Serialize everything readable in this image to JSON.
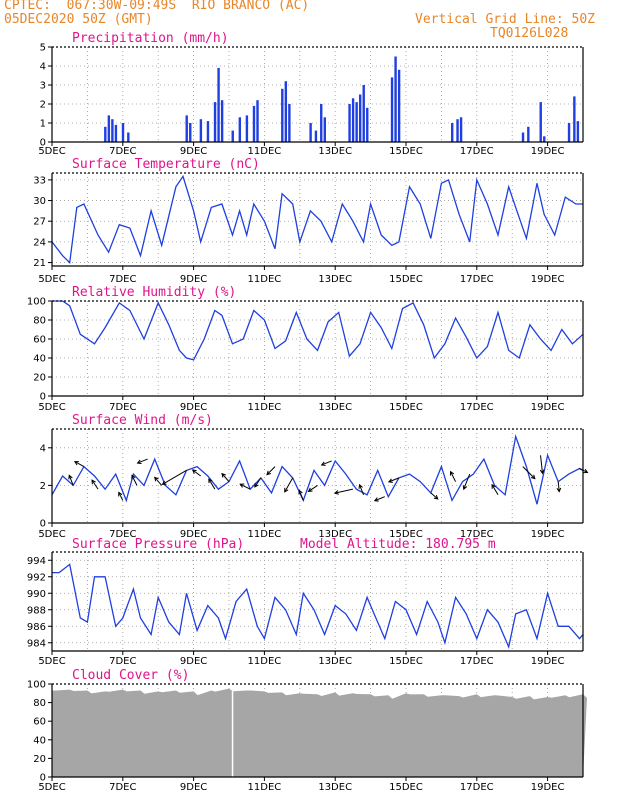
{
  "header": {
    "line1_left": "CPTEC:  067:30W-09:49S  RIO BRANCO (AC)",
    "line2_left": "05DEC2020 50Z (GMT)",
    "line1_right": "Vertical Grid Line: 50Z",
    "line2_right": "TQ0126L028"
  },
  "colors": {
    "accent": "#e0148c",
    "header": "#e8862a",
    "series": "#1f3fe0",
    "cloud": "#a6a6a6"
  },
  "chart_data": [
    {
      "type": "bar",
      "title": "Precipitation (mm/h)",
      "ylim": [
        0,
        5
      ],
      "yticks": [
        "0",
        "1",
        "2",
        "3",
        "4",
        "5"
      ],
      "xticks": [
        "5DEC",
        "7DEC",
        "9DEC",
        "11DEC",
        "13DEC",
        "15DEC",
        "17DEC",
        "19DEC"
      ],
      "x_range_days": [
        5,
        20
      ],
      "bars": [
        {
          "x": 6.5,
          "y": 0.8
        },
        {
          "x": 6.6,
          "y": 1.4
        },
        {
          "x": 6.7,
          "y": 1.2
        },
        {
          "x": 6.8,
          "y": 0.9
        },
        {
          "x": 7.0,
          "y": 1.0
        },
        {
          "x": 7.15,
          "y": 0.5
        },
        {
          "x": 8.8,
          "y": 1.4
        },
        {
          "x": 8.9,
          "y": 1.0
        },
        {
          "x": 9.2,
          "y": 1.2
        },
        {
          "x": 9.4,
          "y": 1.1
        },
        {
          "x": 9.6,
          "y": 2.1
        },
        {
          "x": 9.7,
          "y": 3.9
        },
        {
          "x": 9.8,
          "y": 2.2
        },
        {
          "x": 10.1,
          "y": 0.6
        },
        {
          "x": 10.3,
          "y": 1.3
        },
        {
          "x": 10.5,
          "y": 1.4
        },
        {
          "x": 10.7,
          "y": 1.9
        },
        {
          "x": 10.8,
          "y": 2.2
        },
        {
          "x": 11.5,
          "y": 2.8
        },
        {
          "x": 11.6,
          "y": 3.2
        },
        {
          "x": 11.7,
          "y": 2.0
        },
        {
          "x": 12.3,
          "y": 1.0
        },
        {
          "x": 12.45,
          "y": 0.6
        },
        {
          "x": 12.6,
          "y": 2.0
        },
        {
          "x": 12.7,
          "y": 1.3
        },
        {
          "x": 13.4,
          "y": 2.0
        },
        {
          "x": 13.5,
          "y": 2.3
        },
        {
          "x": 13.6,
          "y": 2.1
        },
        {
          "x": 13.7,
          "y": 2.5
        },
        {
          "x": 13.8,
          "y": 3.0
        },
        {
          "x": 13.9,
          "y": 1.8
        },
        {
          "x": 14.6,
          "y": 3.4
        },
        {
          "x": 14.7,
          "y": 4.5
        },
        {
          "x": 14.8,
          "y": 3.8
        },
        {
          "x": 16.3,
          "y": 1.0
        },
        {
          "x": 16.45,
          "y": 1.2
        },
        {
          "x": 16.55,
          "y": 1.3
        },
        {
          "x": 18.3,
          "y": 0.5
        },
        {
          "x": 18.45,
          "y": 0.8
        },
        {
          "x": 18.8,
          "y": 2.1
        },
        {
          "x": 18.9,
          "y": 0.3
        },
        {
          "x": 19.6,
          "y": 1.0
        },
        {
          "x": 19.75,
          "y": 2.4
        },
        {
          "x": 19.85,
          "y": 1.1
        }
      ]
    },
    {
      "type": "line",
      "title": "Surface Temperature (nC)",
      "ylim": [
        20.5,
        34
      ],
      "yticks": [
        "21",
        "24",
        "27",
        "30",
        "33"
      ],
      "ytick_values": [
        21,
        24,
        27,
        30,
        33
      ],
      "xticks": [
        "5DEC",
        "7DEC",
        "9DEC",
        "11DEC",
        "13DEC",
        "15DEC",
        "17DEC",
        "19DEC"
      ],
      "x_range_days": [
        5,
        20
      ],
      "x": [
        5.0,
        5.3,
        5.5,
        5.7,
        5.9,
        6.3,
        6.6,
        6.9,
        7.2,
        7.5,
        7.8,
        8.1,
        8.5,
        8.7,
        9.0,
        9.2,
        9.5,
        9.8,
        10.1,
        10.3,
        10.5,
        10.7,
        11.0,
        11.3,
        11.5,
        11.8,
        12.0,
        12.3,
        12.6,
        12.9,
        13.2,
        13.5,
        13.8,
        14.0,
        14.3,
        14.6,
        14.8,
        15.1,
        15.4,
        15.7,
        16.0,
        16.2,
        16.5,
        16.8,
        17.0,
        17.3,
        17.6,
        17.9,
        18.1,
        18.4,
        18.7,
        18.9,
        19.2,
        19.5,
        19.8,
        20.0
      ],
      "y": [
        24.0,
        22.0,
        21.0,
        29.0,
        29.5,
        25.0,
        22.5,
        26.5,
        26.0,
        22.0,
        28.5,
        23.5,
        32.0,
        33.5,
        28.5,
        24.0,
        29.0,
        29.5,
        25.0,
        28.5,
        25.0,
        29.5,
        27.0,
        23.0,
        31.0,
        29.5,
        24.0,
        28.5,
        27.0,
        24.0,
        29.5,
        27.0,
        24.0,
        29.5,
        25.0,
        23.5,
        24.0,
        32.0,
        29.5,
        24.5,
        32.5,
        33.0,
        28.0,
        24.0,
        33.0,
        29.5,
        25.0,
        32.0,
        29.0,
        24.5,
        32.5,
        28.0,
        25.0,
        30.5,
        29.5,
        29.5
      ]
    },
    {
      "type": "line",
      "title": "Relative Humidity (%)",
      "ylim": [
        0,
        100
      ],
      "yticks": [
        "0",
        "20",
        "40",
        "60",
        "80",
        "100"
      ],
      "ytick_values": [
        0,
        20,
        40,
        60,
        80,
        100
      ],
      "xticks": [
        "5DEC",
        "7DEC",
        "9DEC",
        "11DEC",
        "13DEC",
        "15DEC",
        "17DEC",
        "19DEC"
      ],
      "x_range_days": [
        5,
        20
      ],
      "x": [
        5.0,
        5.3,
        5.5,
        5.8,
        6.2,
        6.5,
        6.9,
        7.2,
        7.6,
        8.0,
        8.3,
        8.6,
        8.8,
        9.0,
        9.3,
        9.6,
        9.8,
        10.1,
        10.4,
        10.7,
        11.0,
        11.3,
        11.6,
        11.9,
        12.2,
        12.5,
        12.8,
        13.1,
        13.4,
        13.7,
        14.0,
        14.3,
        14.6,
        14.9,
        15.2,
        15.5,
        15.8,
        16.1,
        16.4,
        16.7,
        17.0,
        17.3,
        17.6,
        17.9,
        18.2,
        18.5,
        18.8,
        19.1,
        19.4,
        19.7,
        20.0
      ],
      "y": [
        100,
        100,
        95,
        65,
        55,
        72,
        98,
        90,
        60,
        98,
        75,
        48,
        40,
        38,
        60,
        90,
        85,
        55,
        60,
        90,
        80,
        50,
        58,
        88,
        60,
        48,
        78,
        88,
        42,
        55,
        88,
        72,
        50,
        92,
        98,
        75,
        40,
        55,
        82,
        62,
        40,
        52,
        88,
        48,
        40,
        75,
        60,
        48,
        70,
        55,
        65
      ]
    },
    {
      "type": "line",
      "title": "Surface Wind (m/s)",
      "ylim": [
        0,
        5
      ],
      "yticks": [
        "0",
        "2",
        "4"
      ],
      "ytick_values": [
        0,
        2,
        4
      ],
      "xticks": [
        "5DEC",
        "7DEC",
        "9DEC",
        "11DEC",
        "13DEC",
        "15DEC",
        "17DEC",
        "19DEC"
      ],
      "x_range_days": [
        5,
        20
      ],
      "x": [
        5.0,
        5.3,
        5.6,
        5.9,
        6.2,
        6.5,
        6.8,
        7.1,
        7.3,
        7.6,
        7.9,
        8.2,
        8.5,
        8.8,
        9.1,
        9.4,
        9.7,
        10.0,
        10.3,
        10.6,
        10.9,
        11.2,
        11.5,
        11.8,
        12.1,
        12.4,
        12.7,
        13.0,
        13.3,
        13.6,
        13.9,
        14.2,
        14.5,
        14.8,
        15.1,
        15.4,
        15.7,
        16.0,
        16.3,
        16.6,
        16.9,
        17.2,
        17.5,
        17.8,
        18.1,
        18.4,
        18.7,
        19.0,
        19.3,
        19.6,
        19.9,
        20.0
      ],
      "y": [
        1.5,
        2.5,
        2.0,
        3.0,
        2.5,
        1.8,
        2.6,
        1.2,
        2.6,
        2.0,
        3.4,
        2.0,
        1.5,
        2.8,
        3.0,
        2.5,
        1.8,
        2.2,
        3.3,
        1.8,
        2.4,
        1.6,
        3.0,
        2.4,
        1.2,
        2.8,
        2.0,
        3.3,
        2.6,
        1.8,
        1.5,
        2.8,
        1.4,
        2.4,
        2.6,
        2.2,
        1.6,
        3.0,
        1.2,
        2.2,
        2.6,
        3.4,
        2.0,
        1.5,
        4.6,
        3.0,
        1.0,
        3.6,
        2.2,
        2.6,
        2.9,
        2.8
      ],
      "arrows": [
        {
          "x": 5.6,
          "dx": -4,
          "dy": -10
        },
        {
          "x": 5.9,
          "dx": -9,
          "dy": -5
        },
        {
          "x": 6.3,
          "dx": -6,
          "dy": -9
        },
        {
          "x": 7.0,
          "dx": -4,
          "dy": -8
        },
        {
          "x": 7.4,
          "dx": -5,
          "dy": -10
        },
        {
          "x": 7.7,
          "dx": -10,
          "dy": 4
        },
        {
          "x": 8.1,
          "dx": -7,
          "dy": -8
        },
        {
          "x": 8.8,
          "dx": -24,
          "dy": 14
        },
        {
          "x": 9.2,
          "dx": -8,
          "dy": -6
        },
        {
          "x": 9.6,
          "dx": -6,
          "dy": -10
        },
        {
          "x": 10.0,
          "dx": -7,
          "dy": -8
        },
        {
          "x": 10.6,
          "dx": -10,
          "dy": -5
        },
        {
          "x": 10.9,
          "dx": -6,
          "dy": 9
        },
        {
          "x": 11.3,
          "dx": -8,
          "dy": 8
        },
        {
          "x": 11.8,
          "dx": -8,
          "dy": 14
        },
        {
          "x": 12.1,
          "dx": -4,
          "dy": -10
        },
        {
          "x": 12.5,
          "dx": -9,
          "dy": 6
        },
        {
          "x": 12.9,
          "dx": -10,
          "dy": 4
        },
        {
          "x": 13.5,
          "dx": -18,
          "dy": 4
        },
        {
          "x": 13.8,
          "dx": -4,
          "dy": -10
        },
        {
          "x": 14.4,
          "dx": -10,
          "dy": 4
        },
        {
          "x": 14.8,
          "dx": -10,
          "dy": 4
        },
        {
          "x": 15.7,
          "dx": 7,
          "dy": 6
        },
        {
          "x": 16.4,
          "dx": -5,
          "dy": -10
        },
        {
          "x": 16.8,
          "dx": -6,
          "dy": 15
        },
        {
          "x": 17.6,
          "dx": -6,
          "dy": -10
        },
        {
          "x": 18.3,
          "dx": 12,
          "dy": 12
        },
        {
          "x": 18.8,
          "dx": 2,
          "dy": 18
        },
        {
          "x": 19.3,
          "dx": 1,
          "dy": 10
        },
        {
          "x": 19.9,
          "dx": 8,
          "dy": 4
        }
      ]
    },
    {
      "type": "line",
      "title": "Surface Pressure (hPa)",
      "subtitle": "Model Altitude: 180.795 m",
      "ylim": [
        983,
        995
      ],
      "yticks": [
        "984",
        "986",
        "988",
        "990",
        "992",
        "994"
      ],
      "ytick_values": [
        984,
        986,
        988,
        990,
        992,
        994
      ],
      "xticks": [
        "5DEC",
        "7DEC",
        "9DEC",
        "11DEC",
        "13DEC",
        "15DEC",
        "17DEC",
        "19DEC"
      ],
      "x_range_days": [
        5,
        20
      ],
      "x": [
        5.0,
        5.2,
        5.5,
        5.8,
        6.0,
        6.2,
        6.5,
        6.8,
        7.0,
        7.3,
        7.5,
        7.8,
        8.0,
        8.3,
        8.6,
        8.8,
        9.1,
        9.4,
        9.7,
        9.9,
        10.2,
        10.5,
        10.8,
        11.0,
        11.3,
        11.6,
        11.9,
        12.1,
        12.4,
        12.7,
        13.0,
        13.3,
        13.6,
        13.9,
        14.1,
        14.4,
        14.7,
        15.0,
        15.3,
        15.6,
        15.9,
        16.1,
        16.4,
        16.7,
        17.0,
        17.3,
        17.6,
        17.9,
        18.1,
        18.4,
        18.7,
        19.0,
        19.3,
        19.6,
        19.9,
        20.0
      ],
      "y": [
        992.5,
        992.5,
        993.5,
        987.0,
        986.5,
        992.0,
        992.0,
        986.0,
        987.0,
        990.5,
        987.0,
        985.0,
        989.5,
        986.5,
        985.0,
        990.0,
        985.5,
        988.5,
        987.0,
        984.5,
        989.0,
        990.5,
        986.0,
        984.5,
        989.5,
        988.0,
        985.0,
        990.0,
        988.0,
        985.0,
        988.5,
        987.5,
        985.5,
        989.5,
        987.5,
        984.5,
        989.0,
        988.0,
        985.0,
        989.0,
        986.5,
        984.0,
        989.5,
        987.5,
        984.5,
        988.0,
        986.5,
        983.5,
        987.5,
        988.0,
        984.5,
        990.0,
        986.0,
        986.0,
        984.5,
        985.0
      ]
    },
    {
      "type": "area",
      "title": "Cloud Cover (%)",
      "ylim": [
        0,
        100
      ],
      "yticks": [
        "0",
        "20",
        "40",
        "60",
        "80",
        "100"
      ],
      "ytick_values": [
        0,
        20,
        40,
        60,
        80,
        100
      ],
      "xticks": [
        "5DEC",
        "7DEC",
        "9DEC",
        "11DEC",
        "13DEC",
        "15DEC",
        "17DEC",
        "19DEC"
      ],
      "x_range_days": [
        5,
        20
      ],
      "x": [
        5.0,
        5.5,
        6.0,
        6.5,
        7.0,
        7.5,
        8.0,
        8.5,
        9.0,
        9.5,
        10.0,
        10.5,
        11.0,
        11.5,
        12.0,
        12.5,
        13.0,
        13.5,
        14.0,
        14.5,
        15.0,
        15.5,
        16.0,
        16.5,
        17.0,
        17.5,
        18.0,
        18.5,
        19.0,
        19.5,
        20.0
      ],
      "y": [
        93,
        94,
        93,
        92,
        94,
        93,
        92,
        93,
        92,
        93,
        95,
        93,
        92,
        91,
        90,
        89,
        91,
        90,
        89,
        88,
        90,
        89,
        88,
        87,
        89,
        88,
        86,
        87,
        86,
        88,
        89
      ]
    }
  ]
}
